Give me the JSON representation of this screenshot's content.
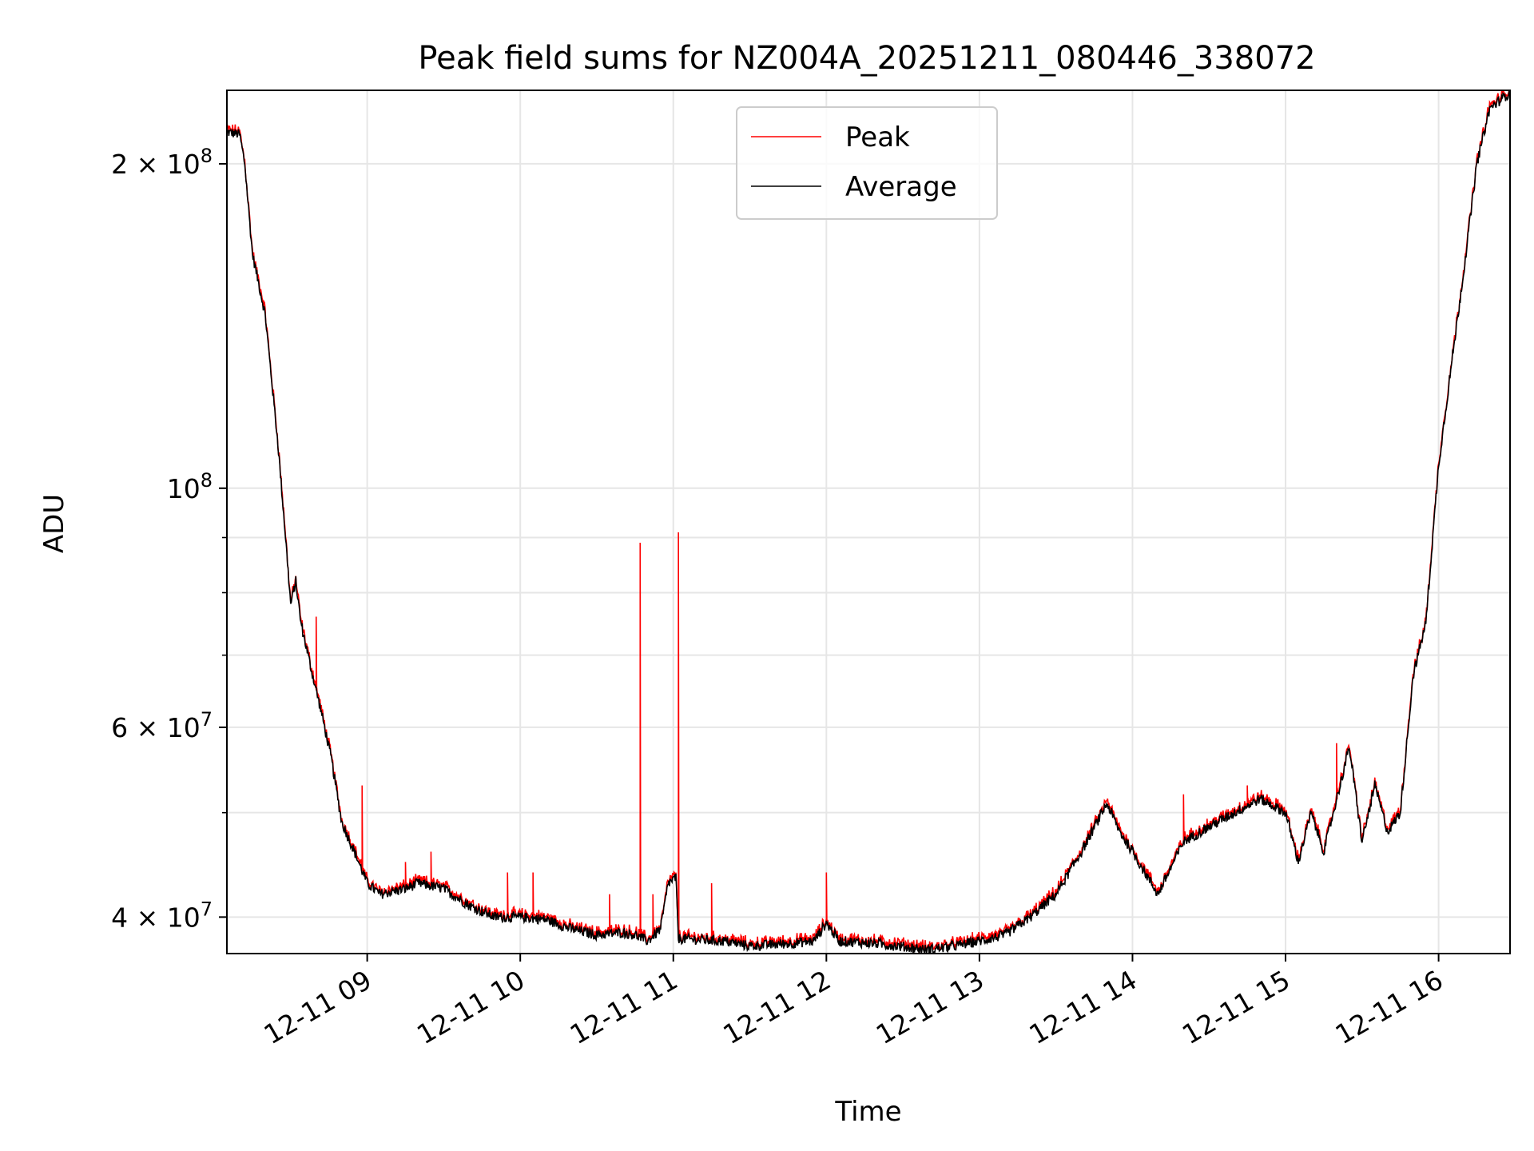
{
  "chart_data": {
    "type": "line",
    "title": "Peak field sums for NZ004A_20251211_080446_338072",
    "xlabel": "Time",
    "ylabel": "ADU",
    "yscale": "log",
    "grid": true,
    "legend_position": "top-center",
    "xlim": [
      "2025-12-11 08:05",
      "2025-12-11 16:28"
    ],
    "ylim": [
      37000000,
      234000000
    ],
    "x_ticks": [
      {
        "value": "2025-12-11 09:00",
        "label": "12-11 09"
      },
      {
        "value": "2025-12-11 10:00",
        "label": "12-11 10"
      },
      {
        "value": "2025-12-11 11:00",
        "label": "12-11 11"
      },
      {
        "value": "2025-12-11 12:00",
        "label": "12-11 12"
      },
      {
        "value": "2025-12-11 13:00",
        "label": "12-11 13"
      },
      {
        "value": "2025-12-11 14:00",
        "label": "12-11 14"
      },
      {
        "value": "2025-12-11 15:00",
        "label": "12-11 15"
      },
      {
        "value": "2025-12-11 16:00",
        "label": "12-11 16"
      }
    ],
    "y_ticks": [
      {
        "value": 40000000,
        "mantissa": "4",
        "exponent": "7"
      },
      {
        "value": 60000000,
        "mantissa": "6",
        "exponent": "7"
      },
      {
        "value": 100000000,
        "mantissa": "10",
        "exponent": "8"
      },
      {
        "value": 200000000,
        "mantissa": "2",
        "exponent": "8"
      }
    ],
    "y_minor_ticks": [
      50000000,
      70000000,
      80000000,
      90000000
    ],
    "colors": {
      "peak": "#ff0000",
      "average": "#000000",
      "grid": "#e6e6e6"
    },
    "series": [
      {
        "name": "Average",
        "color": "#000000",
        "points": [
          [
            "08:05",
            214000000
          ],
          [
            "08:10",
            213000000
          ],
          [
            "08:12",
            200000000
          ],
          [
            "08:15",
            165000000
          ],
          [
            "08:20",
            145000000
          ],
          [
            "08:25",
            110000000
          ],
          [
            "08:28",
            90000000
          ],
          [
            "08:30",
            78000000
          ],
          [
            "08:32",
            82000000
          ],
          [
            "08:34",
            75000000
          ],
          [
            "08:38",
            68000000
          ],
          [
            "08:42",
            62000000
          ],
          [
            "08:46",
            56000000
          ],
          [
            "08:50",
            49000000
          ],
          [
            "08:55",
            46000000
          ],
          [
            "09:00",
            43000000
          ],
          [
            "09:05",
            42000000
          ],
          [
            "09:15",
            42500000
          ],
          [
            "09:20",
            43000000
          ],
          [
            "09:30",
            42500000
          ],
          [
            "09:40",
            41000000
          ],
          [
            "09:50",
            40000000
          ],
          [
            "10:00",
            40000000
          ],
          [
            "10:10",
            39800000
          ],
          [
            "10:20",
            39000000
          ],
          [
            "10:30",
            38500000
          ],
          [
            "10:40",
            38700000
          ],
          [
            "10:45",
            38500000
          ],
          [
            "10:50",
            38000000
          ],
          [
            "10:55",
            39000000
          ],
          [
            "10:58",
            43000000
          ],
          [
            "11:01",
            43500000
          ],
          [
            "11:02",
            38200000
          ],
          [
            "11:20",
            38000000
          ],
          [
            "11:30",
            37600000
          ],
          [
            "11:45",
            37800000
          ],
          [
            "11:55",
            38000000
          ],
          [
            "12:00",
            39500000
          ],
          [
            "12:05",
            38000000
          ],
          [
            "12:20",
            37800000
          ],
          [
            "12:40",
            37300000
          ],
          [
            "12:50",
            37600000
          ],
          [
            "13:00",
            38000000
          ],
          [
            "13:10",
            38500000
          ],
          [
            "13:20",
            40000000
          ],
          [
            "13:30",
            42000000
          ],
          [
            "13:40",
            46000000
          ],
          [
            "13:50",
            51000000
          ],
          [
            "13:55",
            48000000
          ],
          [
            "14:00",
            46000000
          ],
          [
            "14:10",
            42000000
          ],
          [
            "14:20",
            47000000
          ],
          [
            "14:30",
            48500000
          ],
          [
            "14:40",
            50000000
          ],
          [
            "14:50",
            51500000
          ],
          [
            "15:00",
            50000000
          ],
          [
            "15:05",
            45000000
          ],
          [
            "15:10",
            50000000
          ],
          [
            "15:15",
            46000000
          ],
          [
            "15:25",
            57500000
          ],
          [
            "15:30",
            47000000
          ],
          [
            "15:35",
            53000000
          ],
          [
            "15:40",
            48000000
          ],
          [
            "15:45",
            50000000
          ],
          [
            "15:50",
            67000000
          ],
          [
            "15:55",
            75000000
          ],
          [
            "16:00",
            105000000
          ],
          [
            "16:05",
            130000000
          ],
          [
            "16:10",
            160000000
          ],
          [
            "16:15",
            200000000
          ],
          [
            "16:20",
            225000000
          ],
          [
            "16:28",
            233000000
          ]
        ]
      },
      {
        "name": "Peak",
        "color": "#ff0000",
        "spikes": [
          [
            "08:40",
            76000000
          ],
          [
            "08:58",
            53000000
          ],
          [
            "09:15",
            45000000
          ],
          [
            "09:25",
            46000000
          ],
          [
            "09:55",
            44000000
          ],
          [
            "10:05",
            44000000
          ],
          [
            "10:35",
            42000000
          ],
          [
            "10:47",
            89000000
          ],
          [
            "10:52",
            42000000
          ],
          [
            "11:02",
            91000000
          ],
          [
            "11:15",
            43000000
          ],
          [
            "12:00",
            44000000
          ],
          [
            "14:20",
            52000000
          ],
          [
            "14:45",
            53000000
          ],
          [
            "15:20",
            58000000
          ]
        ]
      }
    ]
  },
  "legend": {
    "peak_label": "Peak",
    "average_label": "Average"
  }
}
